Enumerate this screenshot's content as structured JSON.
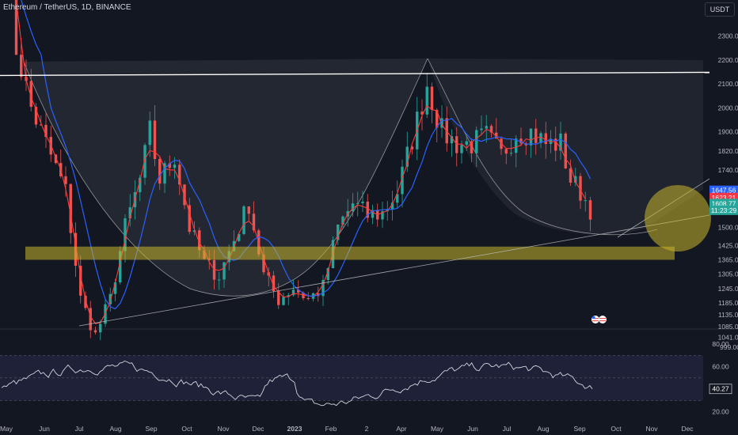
{
  "header": {
    "title": "Ethereum / TetherUS, 1D, BINANCE",
    "currency": "USDT"
  },
  "colors": {
    "background": "#131722",
    "up_candle": "#26a69a",
    "down_candle": "#ef5350",
    "ma_fast": "#ff3b3b",
    "ma_slow": "#2962ff",
    "zone": "#c9b52a",
    "rsi": "#d1d4dc",
    "rsi_band": "#2a2a4a"
  },
  "chart_data": [
    {
      "type": "candlestick",
      "title": "",
      "ylim": [
        999,
        2380
      ],
      "y_ticks": [
        2300,
        2200,
        2100,
        2000,
        1900,
        1820,
        1740,
        1650,
        1500,
        1425,
        1365,
        1305,
        1245,
        1185,
        1135,
        1085,
        1041,
        999
      ],
      "x_ticks": [
        "May",
        "Jun",
        "Jul",
        "Aug",
        "Sep",
        "Oct",
        "Nov",
        "Dec",
        "2023",
        "Feb",
        "2",
        "Apr",
        "May",
        "Jun",
        "Jul",
        "Aug",
        "Sep",
        "Oct",
        "Nov",
        "Dec"
      ],
      "price_path": [
        [
          0,
          2900
        ],
        [
          2,
          2250
        ],
        [
          5,
          2000
        ],
        [
          8,
          1850
        ],
        [
          12,
          1650
        ],
        [
          15,
          1200
        ],
        [
          18,
          1050
        ],
        [
          21,
          1200
        ],
        [
          24,
          1500
        ],
        [
          27,
          1700
        ],
        [
          29,
          1900
        ],
        [
          31,
          1700
        ],
        [
          34,
          1800
        ],
        [
          37,
          1500
        ],
        [
          40,
          1350
        ],
        [
          43,
          1300
        ],
        [
          46,
          1450
        ],
        [
          49,
          1600
        ],
        [
          52,
          1300
        ],
        [
          55,
          1200
        ],
        [
          58,
          1250
        ],
        [
          61,
          1200
        ],
        [
          64,
          1250
        ],
        [
          67,
          1500
        ],
        [
          70,
          1600
        ],
        [
          73,
          1550
        ],
        [
          76,
          1560
        ],
        [
          79,
          1650
        ],
        [
          82,
          1870
        ],
        [
          85,
          2100
        ],
        [
          88,
          1900
        ],
        [
          91,
          1850
        ],
        [
          94,
          1850
        ],
        [
          97,
          1880
        ],
        [
          100,
          1800
        ],
        [
          103,
          1900
        ],
        [
          106,
          1900
        ],
        [
          109,
          1850
        ],
        [
          112,
          1850
        ],
        [
          114,
          1700
        ],
        [
          116,
          1650
        ],
        [
          118,
          1580
        ]
      ],
      "price_tags": [
        {
          "label": "1647.56",
          "color": "#2962ff",
          "value": 1655
        },
        {
          "label": "1623.21",
          "color": "#f23645",
          "value": 1625
        },
        {
          "label": "1608.77",
          "color": "#26a69a",
          "value": 1600
        },
        {
          "label": "11:23:29",
          "color": "#26a69a",
          "value": 1572
        }
      ],
      "resistance_level": 2145,
      "support_zone": [
        1365,
        1420
      ]
    },
    {
      "type": "line",
      "title": "",
      "ylim": [
        15,
        90
      ],
      "y_ticks": [
        80,
        60,
        40,
        20
      ],
      "band": [
        30,
        70
      ],
      "current_value_label": "40.27",
      "current_value": 40.27
    }
  ]
}
